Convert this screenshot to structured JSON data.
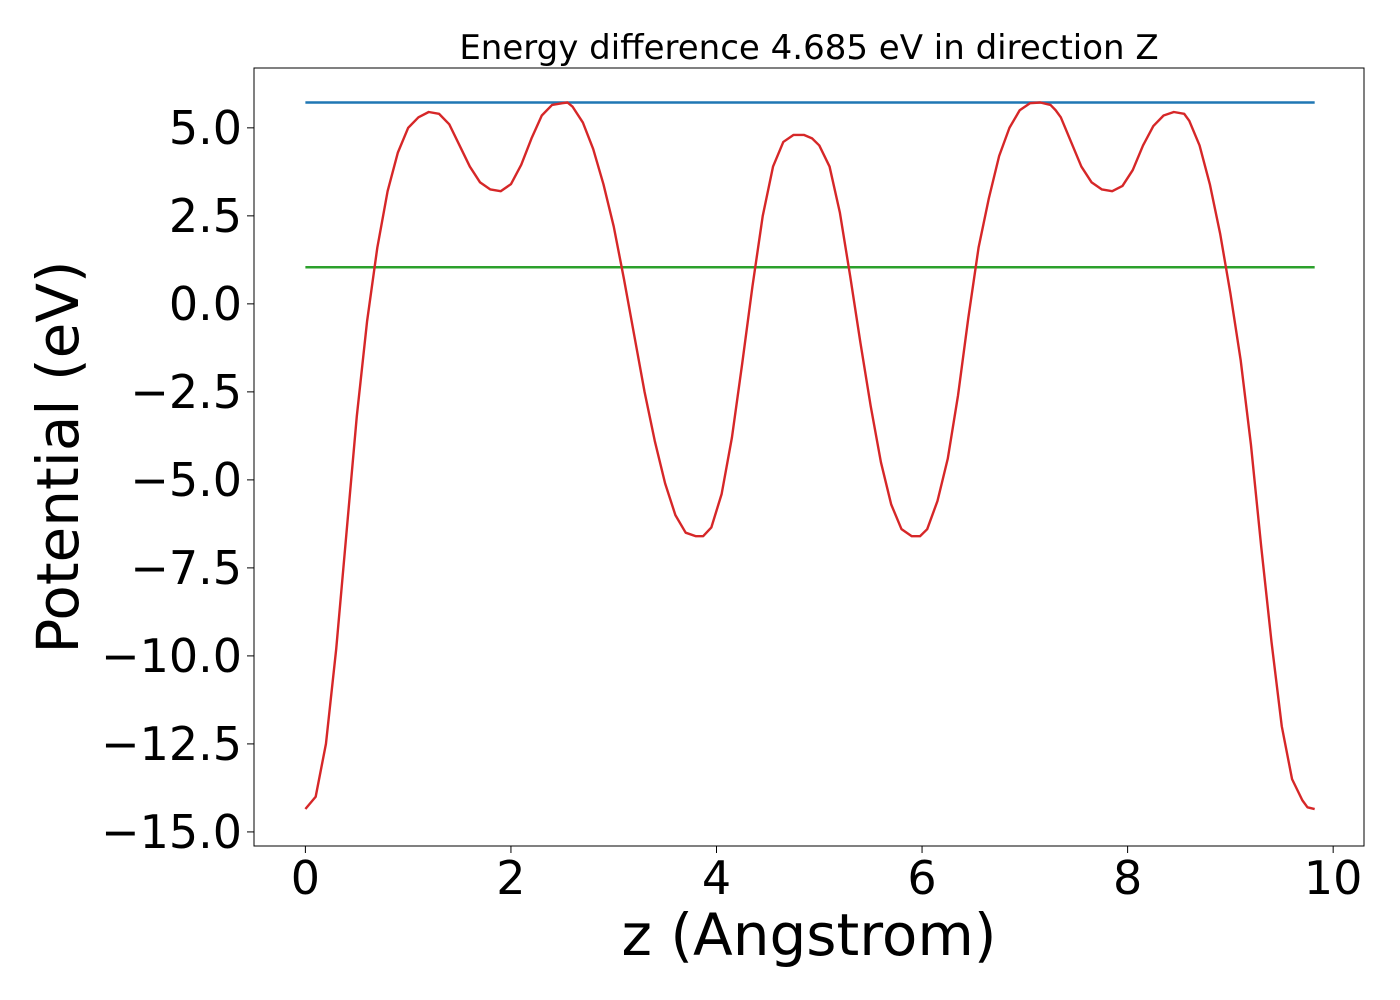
{
  "chart_data": {
    "type": "line",
    "title": "Energy difference 4.685 eV in direction Z",
    "xlabel": "z (Angstrom)",
    "ylabel": "Potential (eV)",
    "xlim": [
      -0.5,
      10.3
    ],
    "ylim": [
      -15.4,
      6.7
    ],
    "xticks": [
      0,
      2,
      4,
      6,
      8,
      10
    ],
    "xtick_labels": [
      "0",
      "2",
      "4",
      "6",
      "8",
      "10"
    ],
    "yticks": [
      5.0,
      2.5,
      0.0,
      -2.5,
      -5.0,
      -7.5,
      -10.0,
      -12.5,
      -15.0
    ],
    "ytick_labels": [
      "5.0",
      "2.5",
      "0.0",
      "−2.5",
      "−5.0",
      "−7.5",
      "−10.0",
      "−12.5",
      "−15.0"
    ],
    "grid": false,
    "series": [
      {
        "color": "#1f77b4",
        "x": [
          0,
          9.82
        ],
        "y": [
          5.72,
          5.72
        ]
      },
      {
        "color": "#2ca02c",
        "x": [
          0,
          9.82
        ],
        "y": [
          1.04,
          1.04
        ]
      },
      {
        "color": "#d62728",
        "x": [
          0.0,
          0.1,
          0.2,
          0.3,
          0.4,
          0.5,
          0.6,
          0.7,
          0.8,
          0.9,
          1.0,
          1.1,
          1.2,
          1.3,
          1.4,
          1.5,
          1.6,
          1.7,
          1.8,
          1.9,
          2.0,
          2.1,
          2.2,
          2.3,
          2.4,
          2.5,
          2.55,
          2.6,
          2.7,
          2.8,
          2.9,
          3.0,
          3.1,
          3.2,
          3.3,
          3.4,
          3.5,
          3.6,
          3.7,
          3.8,
          3.87,
          3.95,
          4.05,
          4.15,
          4.25,
          4.35,
          4.45,
          4.55,
          4.65,
          4.75,
          4.85,
          4.93,
          5.0,
          5.1,
          5.2,
          5.3,
          5.4,
          5.5,
          5.6,
          5.7,
          5.8,
          5.9,
          5.98,
          6.05,
          6.15,
          6.25,
          6.35,
          6.45,
          6.55,
          6.65,
          6.75,
          6.85,
          6.95,
          7.05,
          7.15,
          7.25,
          7.3,
          7.35,
          7.45,
          7.55,
          7.65,
          7.75,
          7.85,
          7.95,
          8.05,
          8.15,
          8.25,
          8.35,
          8.45,
          8.55,
          8.6,
          8.7,
          8.8,
          8.9,
          9.0,
          9.1,
          9.2,
          9.3,
          9.4,
          9.5,
          9.6,
          9.7,
          9.75,
          9.82
        ],
        "y": [
          -14.35,
          -14.0,
          -12.5,
          -9.8,
          -6.5,
          -3.2,
          -0.5,
          1.6,
          3.2,
          4.3,
          5.0,
          5.3,
          5.45,
          5.4,
          5.1,
          4.5,
          3.9,
          3.45,
          3.25,
          3.2,
          3.4,
          3.95,
          4.7,
          5.35,
          5.65,
          5.7,
          5.72,
          5.6,
          5.15,
          4.4,
          3.4,
          2.2,
          0.7,
          -0.9,
          -2.5,
          -3.9,
          -5.1,
          -6.0,
          -6.5,
          -6.6,
          -6.6,
          -6.35,
          -5.4,
          -3.8,
          -1.7,
          0.5,
          2.5,
          3.9,
          4.6,
          4.8,
          4.8,
          4.7,
          4.5,
          3.9,
          2.6,
          0.8,
          -1.1,
          -2.9,
          -4.5,
          -5.7,
          -6.4,
          -6.6,
          -6.6,
          -6.4,
          -5.6,
          -4.4,
          -2.6,
          -0.4,
          1.6,
          3.0,
          4.2,
          5.0,
          5.5,
          5.7,
          5.72,
          5.65,
          5.5,
          5.3,
          4.6,
          3.9,
          3.45,
          3.25,
          3.2,
          3.35,
          3.8,
          4.5,
          5.05,
          5.35,
          5.45,
          5.4,
          5.2,
          4.5,
          3.4,
          2.0,
          0.3,
          -1.6,
          -4.0,
          -6.9,
          -9.6,
          -12.0,
          -13.5,
          -14.1,
          -14.3,
          -14.35
        ]
      }
    ]
  }
}
